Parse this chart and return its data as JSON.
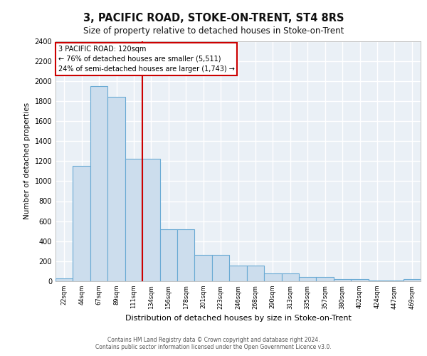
{
  "title": "3, PACIFIC ROAD, STOKE-ON-TRENT, ST4 8RS",
  "subtitle": "Size of property relative to detached houses in Stoke-on-Trent",
  "xlabel": "Distribution of detached houses by size in Stoke-on-Trent",
  "ylabel": "Number of detached properties",
  "bins": [
    "22sqm",
    "44sqm",
    "67sqm",
    "89sqm",
    "111sqm",
    "134sqm",
    "156sqm",
    "178sqm",
    "201sqm",
    "223sqm",
    "246sqm",
    "268sqm",
    "290sqm",
    "313sqm",
    "335sqm",
    "357sqm",
    "380sqm",
    "402sqm",
    "424sqm",
    "447sqm",
    "469sqm"
  ],
  "bar_values": [
    30,
    1150,
    1950,
    1840,
    1220,
    1220,
    520,
    520,
    265,
    265,
    155,
    155,
    75,
    75,
    40,
    40,
    20,
    20,
    10,
    10,
    20
  ],
  "bar_color": "#ccdded",
  "bar_edge_color": "#6aaad4",
  "vline_color": "#cc0000",
  "vline_bar_index": 4,
  "annotation_line1": "3 PACIFIC ROAD: 120sqm",
  "annotation_line2": "← 76% of detached houses are smaller (5,511)",
  "annotation_line3": "24% of semi-detached houses are larger (1,743) →",
  "annotation_box_edgecolor": "#cc0000",
  "ylim": [
    0,
    2400
  ],
  "yticks": [
    0,
    200,
    400,
    600,
    800,
    1000,
    1200,
    1400,
    1600,
    1800,
    2000,
    2200,
    2400
  ],
  "plot_bg_color": "#eaf0f6",
  "grid_color": "#ffffff",
  "footer_line1": "Contains HM Land Registry data © Crown copyright and database right 2024.",
  "footer_line2": "Contains public sector information licensed under the Open Government Licence v3.0."
}
